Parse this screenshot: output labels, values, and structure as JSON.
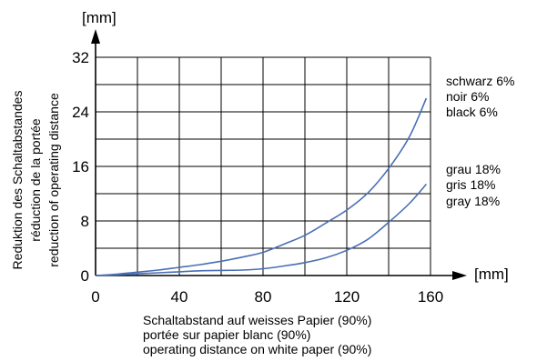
{
  "chart_data": {
    "type": "line",
    "y_unit_label": "[mm]",
    "x_unit_label": "[mm]",
    "xlim": [
      0,
      160
    ],
    "ylim": [
      0,
      32
    ],
    "x_ticks": [
      "0",
      "40",
      "80",
      "120",
      "160"
    ],
    "y_ticks": [
      "0",
      "8",
      "16",
      "24",
      "32"
    ],
    "grid": true,
    "xlabel_lines": [
      "Schaltabstand auf weisses Papier (90%)",
      "portée sur papier blanc (90%)",
      "operating distance on white paper (90%)"
    ],
    "ylabel_lines": [
      "Reduktion des Schaltabstandes",
      "réduction de la portée",
      "reduction of operating distance"
    ],
    "line_color": "#4a6eb5",
    "series": [
      {
        "name_lines": [
          "schwarz 6%",
          "noir 6%",
          "black 6%"
        ],
        "x": [
          0,
          10,
          20,
          30,
          40,
          50,
          60,
          70,
          80,
          90,
          100,
          110,
          120,
          130,
          140,
          150,
          158
        ],
        "y": [
          0,
          0.2,
          0.5,
          0.8,
          1.2,
          1.6,
          2.1,
          2.7,
          3.4,
          4.6,
          5.9,
          7.7,
          9.6,
          12.1,
          15.7,
          20.4,
          26
        ]
      },
      {
        "name_lines": [
          "grau 18%",
          "gris 18%",
          "gray 18%"
        ],
        "x": [
          0,
          10,
          20,
          30,
          40,
          50,
          60,
          70,
          80,
          90,
          100,
          110,
          120,
          130,
          140,
          150,
          158
        ],
        "y": [
          0,
          0.1,
          0.25,
          0.4,
          0.55,
          0.7,
          0.75,
          0.8,
          1.0,
          1.4,
          1.9,
          2.6,
          3.7,
          5.3,
          7.8,
          10.6,
          13.4
        ]
      }
    ]
  }
}
